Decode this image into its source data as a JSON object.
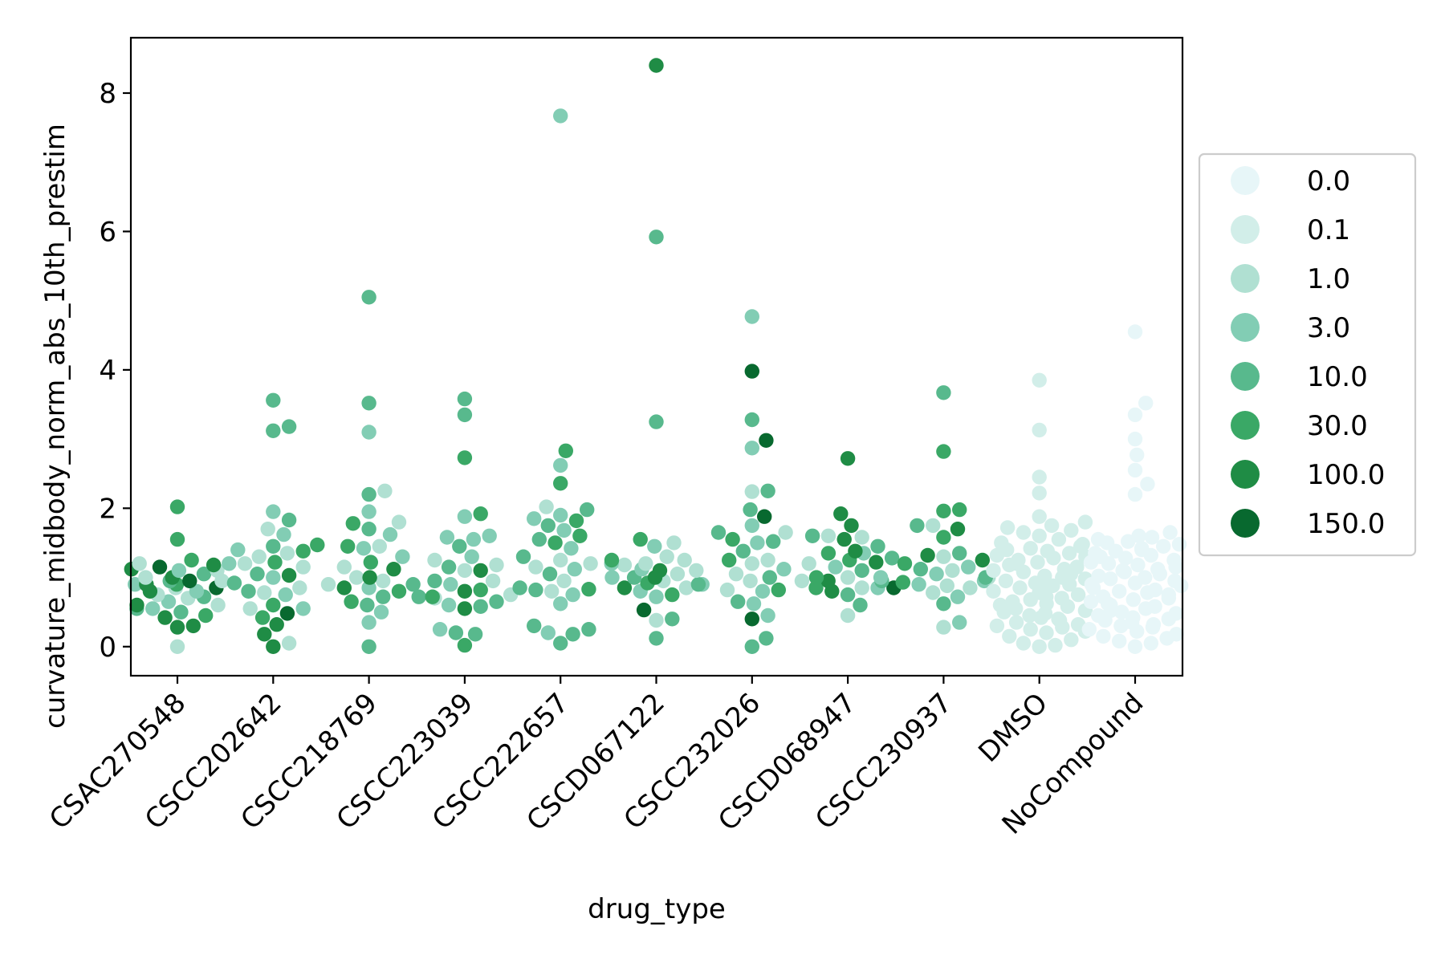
{
  "chart_data": {
    "type": "scatter",
    "subtype": "swarm",
    "xlabel": "drug_type",
    "ylabel": "curvature_midbody_norm_abs_10th_prestim",
    "categories": [
      "CSAC270548",
      "CSCC202642",
      "CSCC218769",
      "CSCC223039",
      "CSCC222657",
      "CSCD067122",
      "CSCC232026",
      "CSCD068947",
      "CSCC230937",
      "DMSO",
      "NoCompound"
    ],
    "ylim": [
      -0.42,
      8.8
    ],
    "yticks": [
      0,
      2,
      4,
      6,
      8
    ],
    "grid": false,
    "legend": {
      "placement": "right-outside",
      "entries": [
        {
          "label": "0.0",
          "color": "#e7f6f8"
        },
        {
          "label": "0.1",
          "color": "#d2eee9"
        },
        {
          "label": "1.0",
          "color": "#b0e0d2"
        },
        {
          "label": "3.0",
          "color": "#82cdb4"
        },
        {
          "label": "10.0",
          "color": "#58b98d"
        },
        {
          "label": "30.0",
          "color": "#3aa866"
        },
        {
          "label": "100.0",
          "color": "#1f8c45"
        },
        {
          "label": "150.0",
          "color": "#08692f"
        }
      ]
    },
    "series": [
      {
        "category": "CSAC270548",
        "concentration": "1.0",
        "values": [
          1.2,
          1.1,
          0.95,
          0.85,
          0.75,
          0.6,
          0.0,
          1.0,
          0.7
        ]
      },
      {
        "category": "CSAC270548",
        "concentration": "3.0",
        "values": [
          1.1,
          0.9,
          0.8,
          0.65,
          0.55
        ]
      },
      {
        "category": "CSAC270548",
        "concentration": "10.0",
        "values": [
          1.05,
          0.95,
          0.72,
          0.55,
          0.5
        ]
      },
      {
        "category": "CSAC270548",
        "concentration": "30.0",
        "values": [
          2.02,
          1.55,
          1.25,
          0.9,
          0.45
        ]
      },
      {
        "category": "CSAC270548",
        "concentration": "100.0",
        "values": [
          1.18,
          1.12,
          1.0,
          0.9,
          0.8,
          0.6,
          0.42,
          0.3,
          0.28
        ]
      },
      {
        "category": "CSAC270548",
        "concentration": "150.0",
        "values": [
          1.15,
          0.95,
          0.85
        ]
      },
      {
        "category": "CSCC202642",
        "concentration": "1.0",
        "values": [
          1.7,
          1.35,
          1.3,
          1.2,
          1.15,
          0.85,
          0.78,
          0.55,
          0.05
        ]
      },
      {
        "category": "CSCC202642",
        "concentration": "3.0",
        "values": [
          1.95,
          1.62,
          1.4,
          1.2,
          1.0,
          0.75,
          0.55
        ]
      },
      {
        "category": "CSCC202642",
        "concentration": "10.0",
        "values": [
          3.56,
          3.18,
          3.12,
          1.83,
          1.45,
          1.05,
          0.92,
          0.8
        ]
      },
      {
        "category": "CSCC202642",
        "concentration": "30.0",
        "values": [
          1.47,
          1.38,
          1.22,
          0.6,
          0.42
        ]
      },
      {
        "category": "CSCC202642",
        "concentration": "100.0",
        "values": [
          1.03,
          0.32,
          0.18,
          0.0
        ]
      },
      {
        "category": "CSCC202642",
        "concentration": "150.0",
        "values": [
          0.48
        ]
      },
      {
        "category": "CSCC218769",
        "concentration": "1.0",
        "values": [
          2.25,
          1.8,
          1.45,
          1.15,
          1.0,
          0.95,
          0.9
        ]
      },
      {
        "category": "CSCC218769",
        "concentration": "3.0",
        "values": [
          3.1,
          1.95,
          1.62,
          1.42,
          1.3,
          0.85,
          0.5,
          0.35
        ]
      },
      {
        "category": "CSCC218769",
        "concentration": "10.0",
        "values": [
          5.05,
          3.52,
          2.2,
          1.7,
          0.9,
          0.72,
          0.6,
          0.0
        ]
      },
      {
        "category": "CSCC218769",
        "concentration": "30.0",
        "values": [
          1.78,
          1.45,
          1.22,
          0.8,
          0.65
        ]
      },
      {
        "category": "CSCC218769",
        "concentration": "100.0",
        "values": [
          1.12,
          1.0,
          0.85
        ]
      },
      {
        "category": "CSCC223039",
        "concentration": "1.0",
        "values": [
          1.25,
          1.18,
          1.1,
          0.95,
          0.75,
          0.7
        ]
      },
      {
        "category": "CSCC223039",
        "concentration": "3.0",
        "values": [
          1.88,
          1.6,
          1.58,
          1.55,
          1.3,
          0.9,
          0.6,
          0.25
        ]
      },
      {
        "category": "CSCC223039",
        "concentration": "10.0",
        "values": [
          3.58,
          3.35,
          1.45,
          1.15,
          0.95,
          0.72,
          0.65,
          0.58,
          0.2,
          0.18
        ]
      },
      {
        "category": "CSCC223039",
        "concentration": "30.0",
        "values": [
          2.73,
          1.92,
          0.82,
          0.72,
          0.02
        ]
      },
      {
        "category": "CSCC223039",
        "concentration": "100.0",
        "values": [
          1.1,
          0.8,
          0.55
        ]
      },
      {
        "category": "CSCC222657",
        "concentration": "1.0",
        "values": [
          2.02,
          1.25,
          1.2,
          1.15,
          0.95,
          0.8
        ]
      },
      {
        "category": "CSCC222657",
        "concentration": "3.0",
        "values": [
          7.67,
          2.62,
          1.9,
          1.85,
          1.68,
          1.42,
          1.12,
          0.75,
          0.62,
          0.2
        ]
      },
      {
        "category": "CSCC222657",
        "concentration": "10.0",
        "values": [
          1.98,
          1.75,
          1.55,
          1.3,
          1.05,
          0.85,
          0.82,
          0.3,
          0.25,
          0.18,
          0.05
        ]
      },
      {
        "category": "CSCC222657",
        "concentration": "30.0",
        "values": [
          2.83,
          2.36,
          1.82,
          1.6,
          1.5,
          0.83
        ]
      },
      {
        "category": "CSCD067122",
        "concentration": "1.0",
        "values": [
          1.5,
          1.3,
          1.25,
          1.2,
          1.18,
          1.1,
          1.05,
          0.95,
          0.85,
          0.38
        ]
      },
      {
        "category": "CSCD067122",
        "concentration": "3.0",
        "values": [
          1.45,
          1.2,
          1.12,
          1.0,
          0.9,
          0.8,
          0.72
        ]
      },
      {
        "category": "CSCD067122",
        "concentration": "10.0",
        "values": [
          5.92,
          3.25,
          1.0,
          0.9,
          0.4,
          0.12
        ]
      },
      {
        "category": "CSCD067122",
        "concentration": "30.0",
        "values": [
          1.55,
          1.25,
          0.92,
          0.75
        ]
      },
      {
        "category": "CSCD067122",
        "concentration": "100.0",
        "values": [
          8.4,
          1.1,
          1.0,
          0.85
        ]
      },
      {
        "category": "CSCD067122",
        "concentration": "150.0",
        "values": [
          0.53
        ]
      },
      {
        "category": "CSCC232026",
        "concentration": "1.0",
        "values": [
          2.24,
          1.65,
          1.25,
          1.2,
          1.05,
          0.95,
          0.82
        ]
      },
      {
        "category": "CSCC232026",
        "concentration": "3.0",
        "values": [
          4.77,
          2.87,
          1.75,
          1.5,
          1.12,
          0.8,
          0.62,
          0.45
        ]
      },
      {
        "category": "CSCC232026",
        "concentration": "10.0",
        "values": [
          3.28,
          2.25,
          1.98,
          1.65,
          1.52,
          1.38,
          1.0,
          0.65,
          0.12,
          0.0
        ]
      },
      {
        "category": "CSCC232026",
        "concentration": "30.0",
        "values": [
          1.55,
          1.25,
          0.82
        ]
      },
      {
        "category": "CSCC232026",
        "concentration": "150.0",
        "values": [
          3.98,
          2.98,
          1.88,
          0.4
        ]
      },
      {
        "category": "CSCD068947",
        "concentration": "1.0",
        "values": [
          1.6,
          1.58,
          1.2,
          1.0,
          0.95,
          0.85,
          0.45
        ]
      },
      {
        "category": "CSCD068947",
        "concentration": "3.0",
        "values": [
          1.35,
          1.15,
          1.0,
          0.85
        ]
      },
      {
        "category": "CSCD068947",
        "concentration": "10.0",
        "values": [
          1.6,
          1.45,
          1.28,
          1.1,
          0.95,
          0.75,
          0.6
        ]
      },
      {
        "category": "CSCD068947",
        "concentration": "30.0",
        "values": [
          1.35,
          1.25,
          1.0,
          0.85
        ]
      },
      {
        "category": "CSCD068947",
        "concentration": "100.0",
        "values": [
          2.72,
          1.92,
          1.75,
          1.55,
          1.38,
          1.22,
          0.95,
          0.8
        ]
      },
      {
        "category": "CSCD068947",
        "concentration": "150.0",
        "values": [
          0.85
        ]
      },
      {
        "category": "CSCC230937",
        "concentration": "1.0",
        "values": [
          1.75,
          1.3,
          1.1,
          1.0,
          0.88,
          0.85,
          0.78,
          0.28
        ]
      },
      {
        "category": "CSCC230937",
        "concentration": "3.0",
        "values": [
          1.15,
          1.05,
          0.95,
          0.9,
          0.72,
          0.35
        ]
      },
      {
        "category": "CSCC230937",
        "concentration": "10.0",
        "values": [
          3.67,
          1.75,
          1.35,
          1.12,
          1.0,
          0.62
        ]
      },
      {
        "category": "CSCC230937",
        "concentration": "30.0",
        "values": [
          2.82,
          1.98,
          1.96,
          1.58,
          1.2,
          0.93
        ]
      },
      {
        "category": "CSCC230937",
        "concentration": "100.0",
        "values": [
          1.7,
          1.32,
          1.25
        ]
      },
      {
        "category": "DMSO",
        "concentration": "0.1",
        "values": [
          3.85,
          3.13,
          2.45,
          2.22,
          1.88,
          1.8,
          1.75,
          1.72,
          1.68,
          1.65,
          1.6,
          1.55,
          1.5,
          1.48,
          1.45,
          1.42,
          1.4,
          1.38,
          1.35,
          1.32,
          1.3,
          1.28,
          1.25,
          1.22,
          1.2,
          1.18,
          1.15,
          1.12,
          1.1,
          1.08,
          1.05,
          1.02,
          1.0,
          0.98,
          0.95,
          0.92,
          0.9,
          0.88,
          0.85,
          0.82,
          0.8,
          0.78,
          0.75,
          0.72,
          0.7,
          0.68,
          0.65,
          0.62,
          0.6,
          0.58,
          0.55,
          0.52,
          0.5,
          0.48,
          0.45,
          0.42,
          0.4,
          0.38,
          0.35,
          0.32,
          0.3,
          0.28,
          0.25,
          0.22,
          0.2,
          0.15,
          0.1,
          0.05,
          0.02,
          0.0
        ]
      },
      {
        "category": "NoCompound",
        "concentration": "0.0",
        "values": [
          4.55,
          3.52,
          3.35,
          3.0,
          2.77,
          2.55,
          2.35,
          2.2,
          1.65,
          1.6,
          1.58,
          1.55,
          1.52,
          1.5,
          1.48,
          1.45,
          1.42,
          1.4,
          1.38,
          1.35,
          1.32,
          1.3,
          1.28,
          1.25,
          1.22,
          1.2,
          1.18,
          1.15,
          1.12,
          1.1,
          1.08,
          1.05,
          1.02,
          1.0,
          0.98,
          0.95,
          0.92,
          0.9,
          0.88,
          0.85,
          0.82,
          0.8,
          0.78,
          0.75,
          0.72,
          0.7,
          0.68,
          0.65,
          0.62,
          0.6,
          0.58,
          0.55,
          0.52,
          0.5,
          0.48,
          0.45,
          0.42,
          0.4,
          0.38,
          0.35,
          0.32,
          0.3,
          0.28,
          0.25,
          0.22,
          0.18,
          0.15,
          0.12,
          0.08,
          0.05,
          0.0
        ]
      }
    ]
  }
}
